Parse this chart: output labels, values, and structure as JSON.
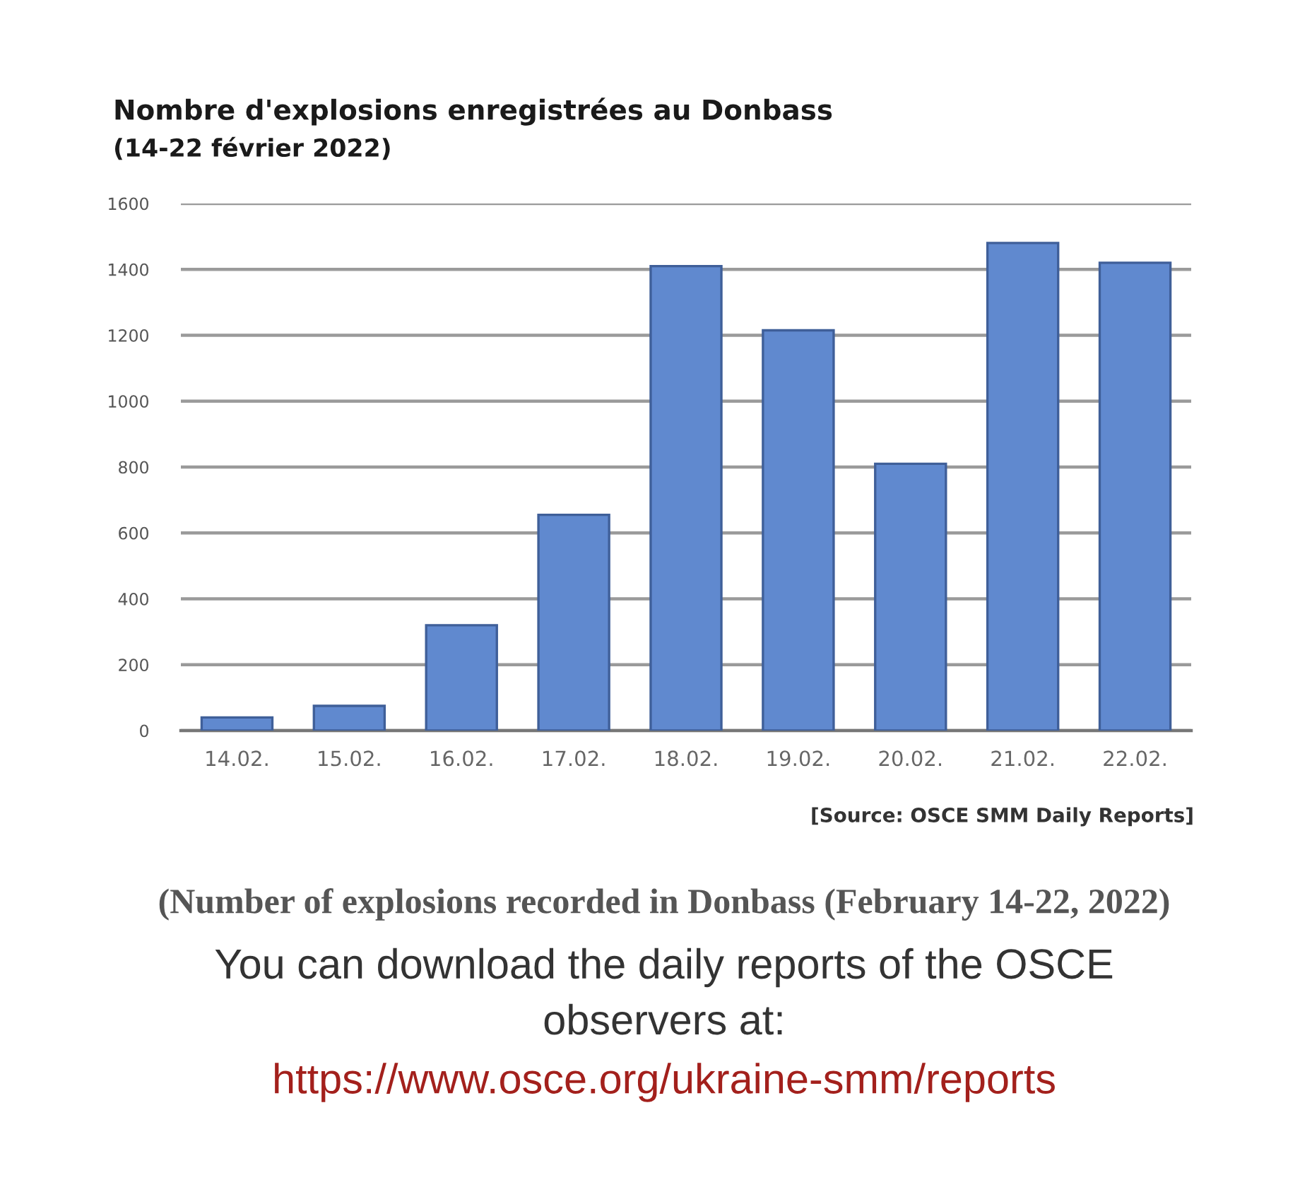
{
  "chart_data": {
    "type": "bar",
    "title": "Nombre d'explosions enregistrées au Donbass",
    "subtitle": "(14-22 février 2022)",
    "categories": [
      "14.02.",
      "15.02.",
      "16.02.",
      "17.02.",
      "18.02.",
      "19.02.",
      "20.02.",
      "21.02.",
      "22.02."
    ],
    "values": [
      40,
      75,
      320,
      655,
      1410,
      1215,
      810,
      1480,
      1420
    ],
    "color": "#6089cf",
    "ylim": [
      0,
      1600
    ],
    "yticks": [
      0,
      200,
      400,
      600,
      800,
      1000,
      1200,
      1400,
      1600
    ],
    "grid": "y",
    "annotations": [
      "[Source: OSCE SMM Daily Reports]",
      "(Number of explosions recorded in Donbass (February 14-22, 2022)",
      "You can download the daily reports of the OSCE observers at:",
      "https://www.osce.org/ukraine-smm/reports"
    ]
  }
}
